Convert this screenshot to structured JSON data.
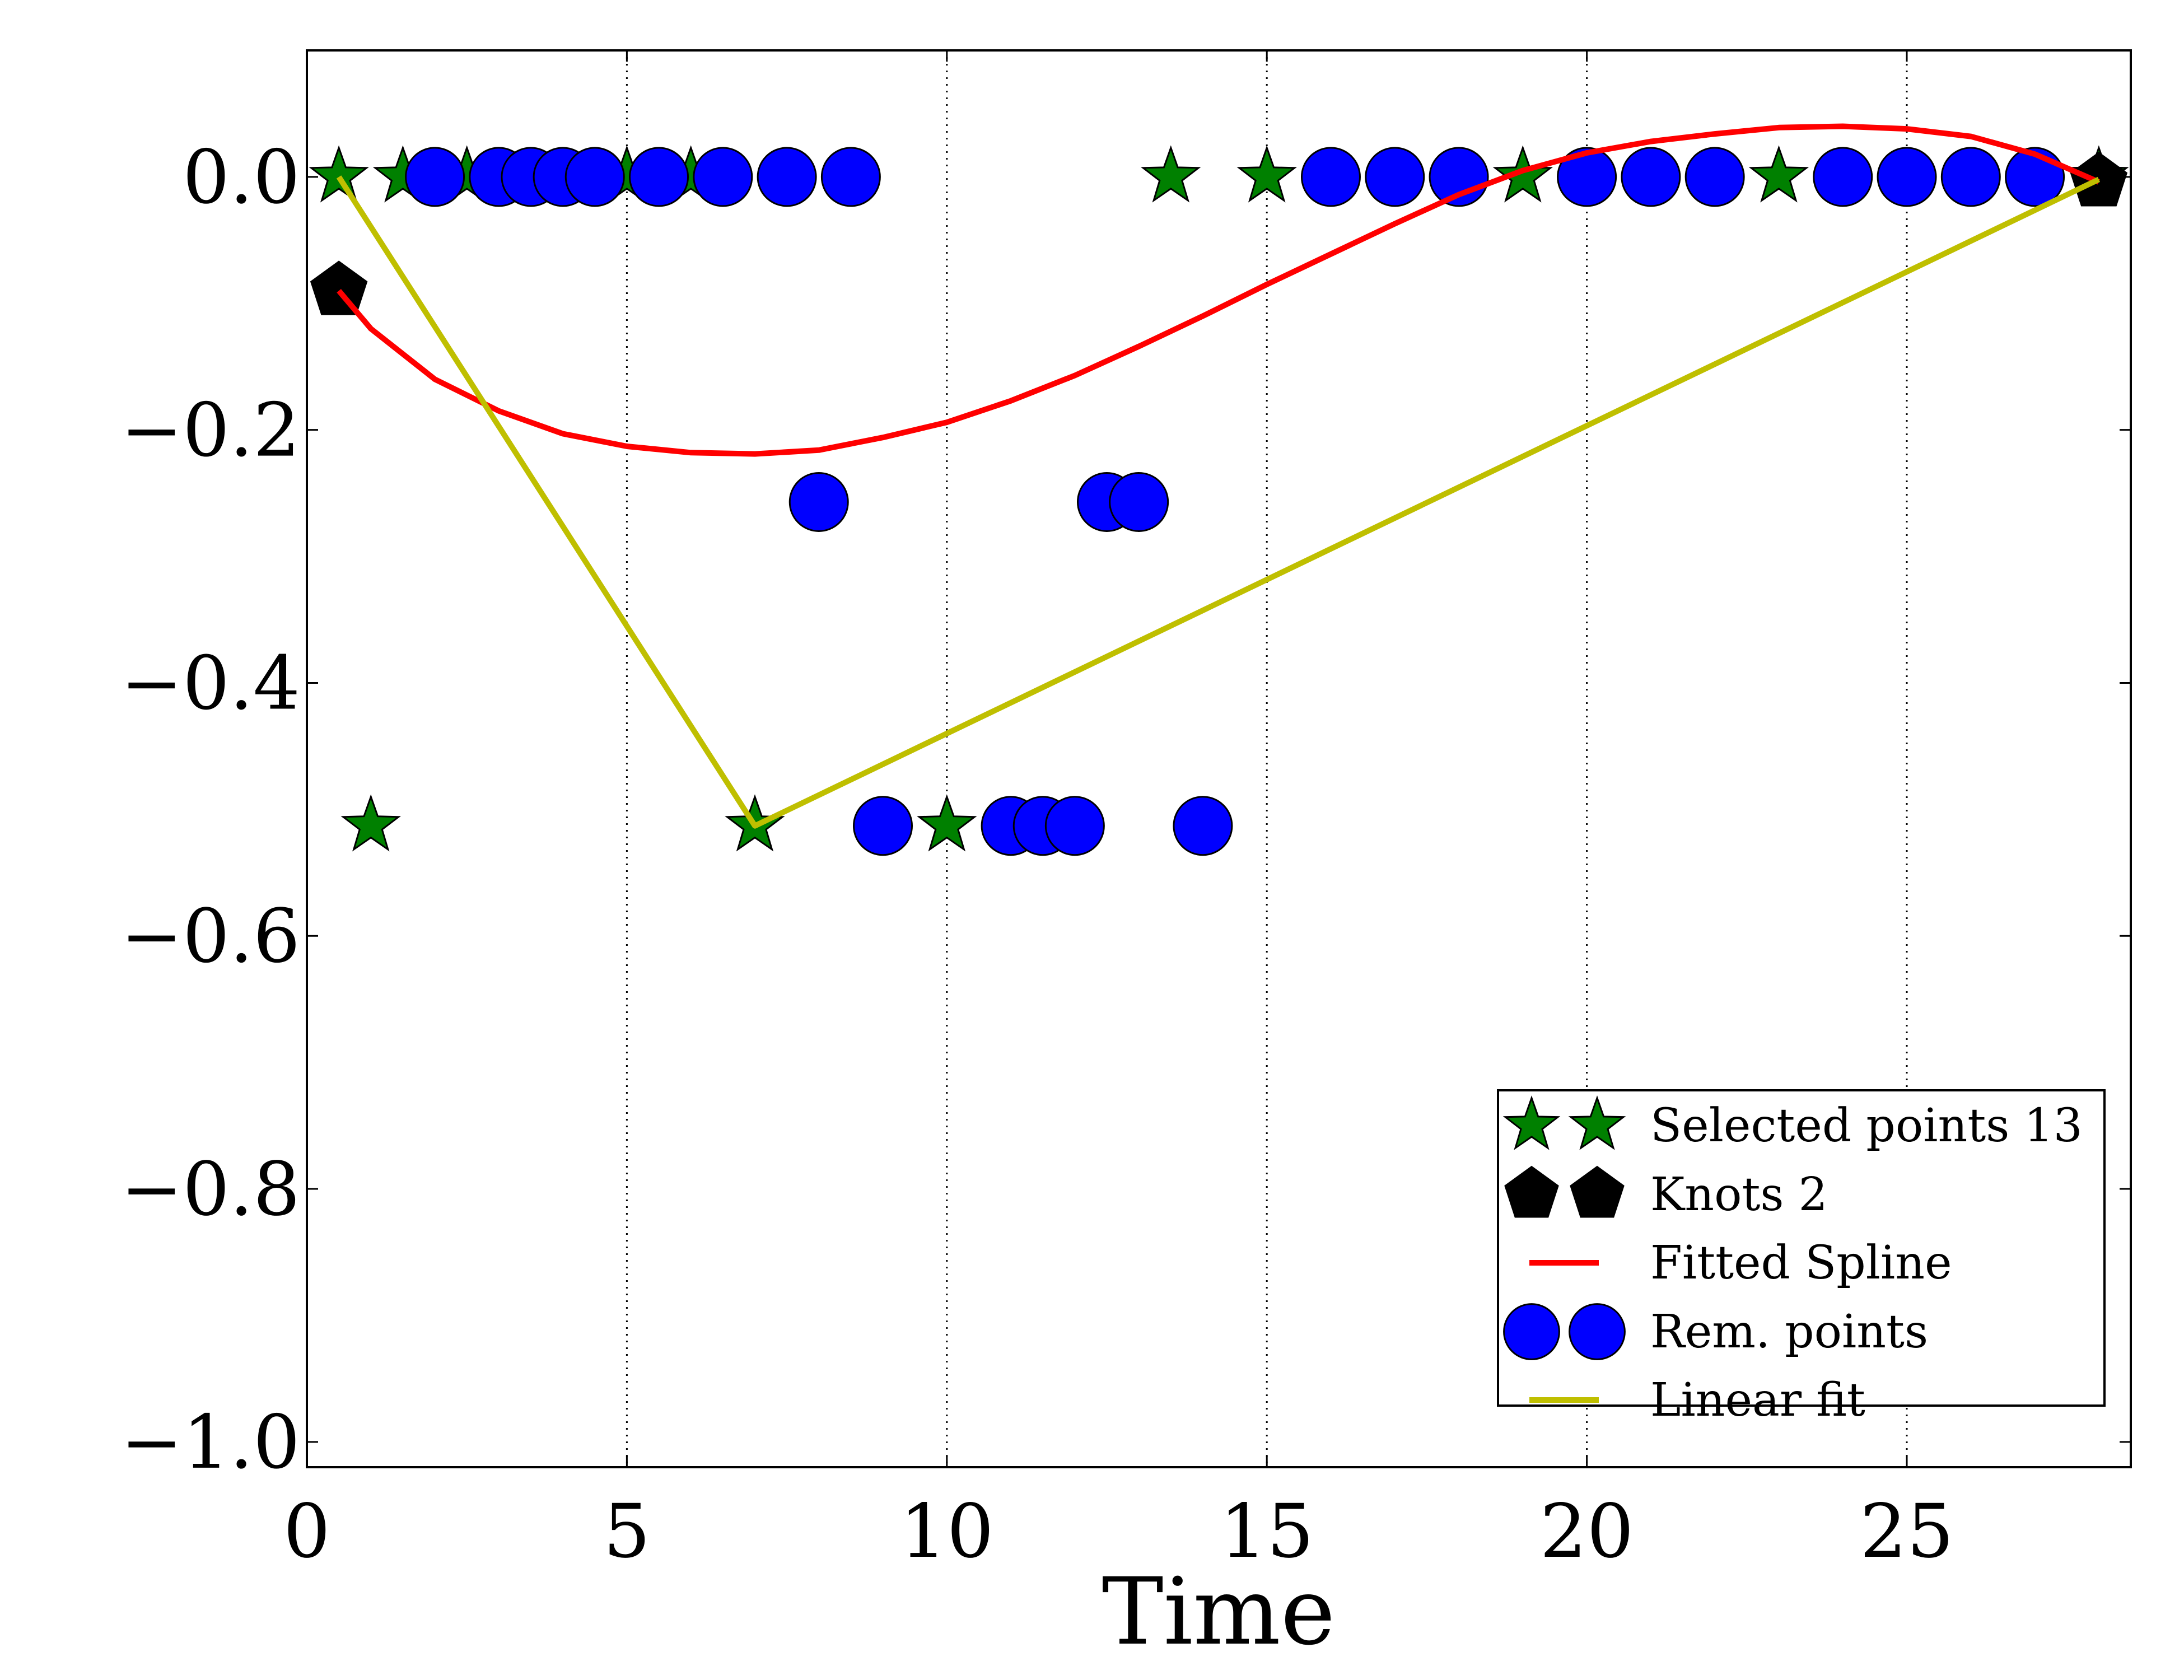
{
  "chart_data": {
    "type": "scatter",
    "title": "",
    "xlabel": "Time",
    "ylabel": "",
    "xlim": [
      0,
      28.5
    ],
    "ylim": [
      -1.02,
      0.1
    ],
    "x_ticks": [
      0,
      5,
      10,
      15,
      20,
      25
    ],
    "x_tick_labels": [
      "0",
      "5",
      "10",
      "15",
      "20",
      "25"
    ],
    "y_ticks": [
      0.0,
      -0.2,
      -0.4,
      -0.6,
      -0.8,
      -1.0
    ],
    "y_tick_labels": [
      "0.0",
      "−0.2",
      "−0.4",
      "−0.6",
      "−0.8",
      "−1.0"
    ],
    "grid": "vertical dotted lines at x ticks",
    "legend_position": "lower-right",
    "series": [
      {
        "name": "Selected points 13",
        "marker": "star",
        "color": "#008000",
        "x": [
          0.5,
          1.5,
          2.5,
          5.0,
          6.0,
          13.5,
          15.0,
          19.0,
          23.0,
          1.0,
          7.0,
          10.0,
          28.0
        ],
        "y": [
          0.0,
          0.0,
          0.0,
          0.0,
          0.0,
          0.0,
          0.0,
          0.0,
          0.0,
          -0.513,
          -0.513,
          -0.513,
          0.0
        ]
      },
      {
        "name": "Knots 2",
        "marker": "pentagon",
        "color": "#000000",
        "x": [
          0.5,
          28.0
        ],
        "y": [
          -0.09,
          -0.004
        ]
      },
      {
        "name": "Fitted Spline",
        "marker": "line",
        "color": "#ff0000",
        "x": [
          0.5,
          1,
          2,
          3,
          4,
          5,
          6,
          7,
          8,
          9,
          10,
          11,
          12,
          13,
          14,
          15,
          16,
          17,
          18,
          19,
          20,
          21,
          22,
          23,
          24,
          25,
          26,
          27,
          28
        ],
        "y": [
          -0.09,
          -0.12,
          -0.16,
          -0.185,
          -0.203,
          -0.213,
          -0.218,
          -0.219,
          -0.216,
          -0.206,
          -0.194,
          -0.177,
          -0.157,
          -0.134,
          -0.11,
          -0.085,
          -0.061,
          -0.037,
          -0.014,
          0.005,
          0.019,
          0.028,
          0.034,
          0.039,
          0.04,
          0.038,
          0.032,
          0.018,
          -0.004
        ]
      },
      {
        "name": "Rem. points",
        "marker": "circle",
        "color": "#0000ff",
        "x": [
          2,
          3,
          3.5,
          4,
          4.5,
          5.5,
          6.5,
          7.5,
          8.5,
          16,
          17,
          18,
          20,
          21,
          22,
          24,
          25,
          26,
          27,
          8,
          12.5,
          13,
          9,
          11,
          11.5,
          12,
          14
        ],
        "y": [
          0,
          0,
          0,
          0,
          0,
          0,
          0,
          0,
          0,
          0,
          0,
          0,
          0,
          0,
          0,
          0,
          0,
          0,
          0,
          -0.257,
          -0.257,
          -0.257,
          -0.513,
          -0.513,
          -0.513,
          -0.513,
          -0.513
        ]
      },
      {
        "name": "Linear fit",
        "marker": "line",
        "color": "#bfbf00",
        "x": [
          0.5,
          7.0,
          28.0
        ],
        "y": [
          0.0,
          -0.513,
          -0.002
        ]
      }
    ]
  }
}
